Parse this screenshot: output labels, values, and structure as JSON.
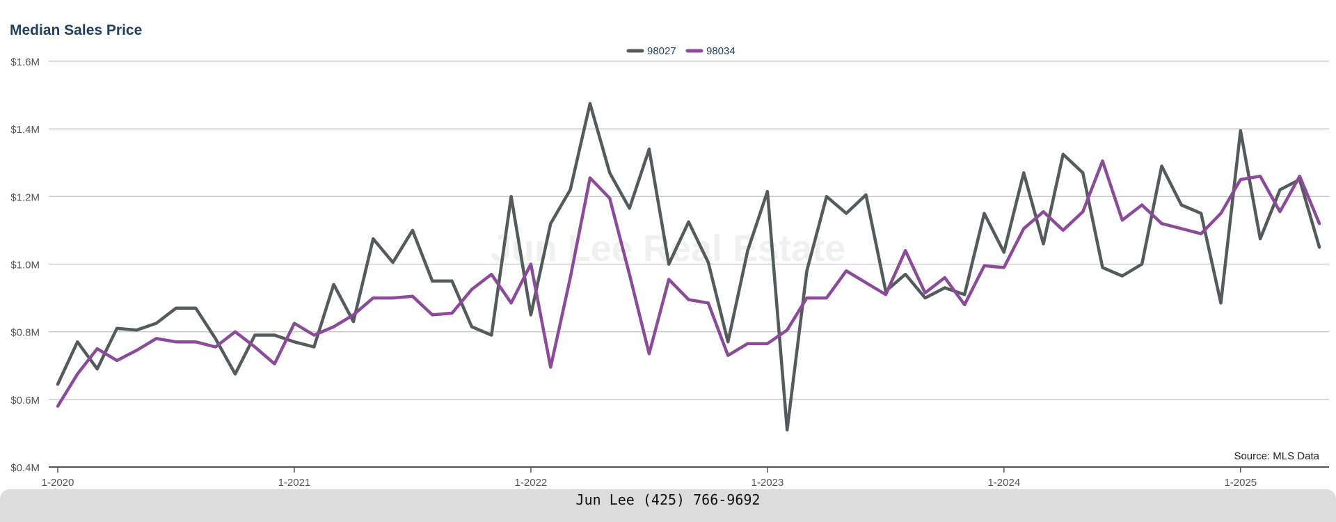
{
  "colors": {
    "s98027": "#535b5d",
    "s98034": "#8b4a9a",
    "title": "#1f3f63",
    "grid": "#c8c8c8",
    "axis": "#555555",
    "text": "#555555"
  },
  "watermark": "Jun Lee Real Estate",
  "source": "Source: MLS Data",
  "footer": "Jun Lee (425) 766-9692",
  "chart_data": {
    "type": "line",
    "title": "Median Sales Price",
    "xlabel": "",
    "ylabel": "",
    "ylim": [
      0.4,
      1.6
    ],
    "y_ticks": [
      {
        "value": 1.6,
        "label": "$1.6M"
      },
      {
        "value": 1.4,
        "label": "$1.4M"
      },
      {
        "value": 1.2,
        "label": "$1.2M"
      },
      {
        "value": 1.0,
        "label": "$1.0M"
      },
      {
        "value": 0.8,
        "label": "$0.8M"
      },
      {
        "value": 0.6,
        "label": "$0.6M"
      },
      {
        "value": 0.4,
        "label": "$0.4M"
      }
    ],
    "x_ticks": [
      "1-2020",
      "1-2021",
      "1-2022",
      "1-2023",
      "1-2024",
      "1-2025"
    ],
    "x_start": "1-2020",
    "x_end": "5-2025",
    "grid": true,
    "legend_position": "top-center",
    "series": [
      {
        "name": "98027",
        "values": [
          0.645,
          0.77,
          0.69,
          0.81,
          0.805,
          0.825,
          0.87,
          0.87,
          0.78,
          0.675,
          0.79,
          0.79,
          0.77,
          0.755,
          0.94,
          0.83,
          1.075,
          1.005,
          1.1,
          0.95,
          0.95,
          0.815,
          0.79,
          1.2,
          0.85,
          1.12,
          1.22,
          1.475,
          1.27,
          1.165,
          1.34,
          1.0,
          1.125,
          1.005,
          0.77,
          1.04,
          1.215,
          0.51,
          0.98,
          1.2,
          1.15,
          1.205,
          0.92,
          0.97,
          0.9,
          0.93,
          0.91,
          1.15,
          1.035,
          1.27,
          1.06,
          1.325,
          1.27,
          0.99,
          0.965,
          1.0,
          1.29,
          1.175,
          1.15,
          0.885,
          1.395,
          1.075,
          1.22,
          1.25,
          1.05
        ]
      },
      {
        "name": "98034",
        "values": [
          0.58,
          0.675,
          0.75,
          0.715,
          0.745,
          0.78,
          0.77,
          0.77,
          0.755,
          0.8,
          0.755,
          0.705,
          0.825,
          0.79,
          0.815,
          0.85,
          0.9,
          0.9,
          0.905,
          0.85,
          0.855,
          0.925,
          0.97,
          0.885,
          1.0,
          0.695,
          0.96,
          1.255,
          1.195,
          0.97,
          0.735,
          0.955,
          0.895,
          0.885,
          0.73,
          0.765,
          0.765,
          0.805,
          0.9,
          0.9,
          0.98,
          0.945,
          0.91,
          1.04,
          0.915,
          0.96,
          0.88,
          0.995,
          0.99,
          1.105,
          1.155,
          1.1,
          1.155,
          1.305,
          1.13,
          1.175,
          1.12,
          1.105,
          1.09,
          1.15,
          1.25,
          1.26,
          1.155,
          1.26,
          1.12
        ]
      }
    ]
  }
}
